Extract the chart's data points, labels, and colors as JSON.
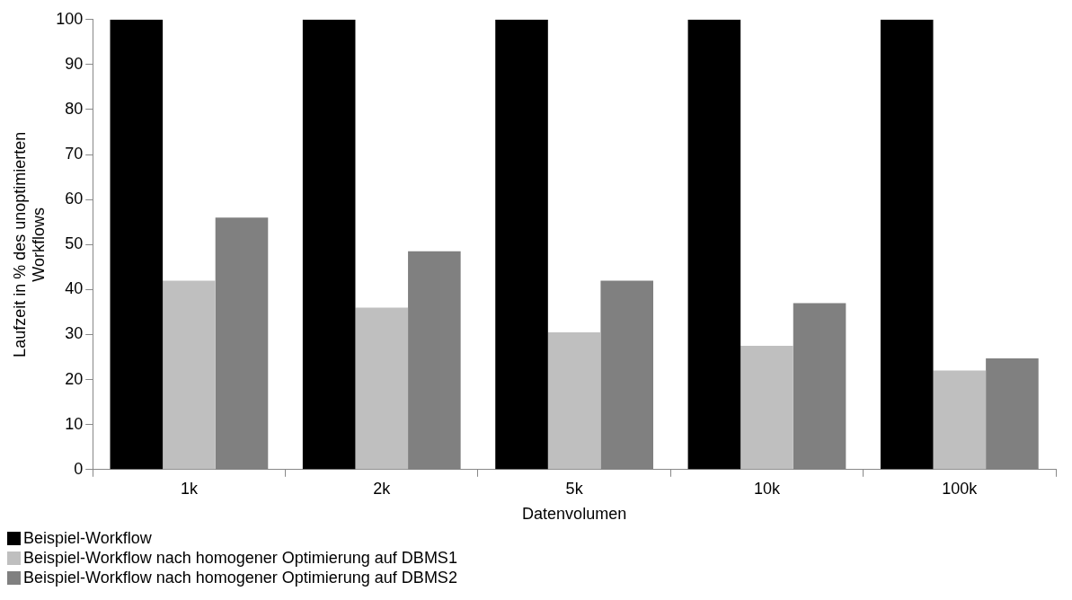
{
  "chart_data": {
    "type": "bar",
    "xlabel": "Datenvolumen",
    "ylabel": "Laufzeit in % des unoptimierten Workflows",
    "categories": [
      "1k",
      "2k",
      "5k",
      "10k",
      "100k"
    ],
    "series": [
      {
        "name": "Beispiel-Workflow",
        "color": "#000000",
        "values": [
          100,
          100,
          100,
          100,
          100
        ]
      },
      {
        "name": "Beispiel-Workflow nach homogener Optimierung auf DBMS1",
        "color": "#bfbfbf",
        "values": [
          42,
          36,
          30.5,
          27.5,
          22
        ]
      },
      {
        "name": "Beispiel-Workflow nach homogener Optimierung auf DBMS2",
        "color": "#808080",
        "values": [
          56,
          48.5,
          42,
          37,
          24.7
        ]
      }
    ],
    "ylim": [
      0,
      100
    ],
    "yticks": [
      0,
      10,
      20,
      30,
      40,
      50,
      60,
      70,
      80,
      90,
      100
    ],
    "grid": false,
    "legend": "bottom left"
  }
}
